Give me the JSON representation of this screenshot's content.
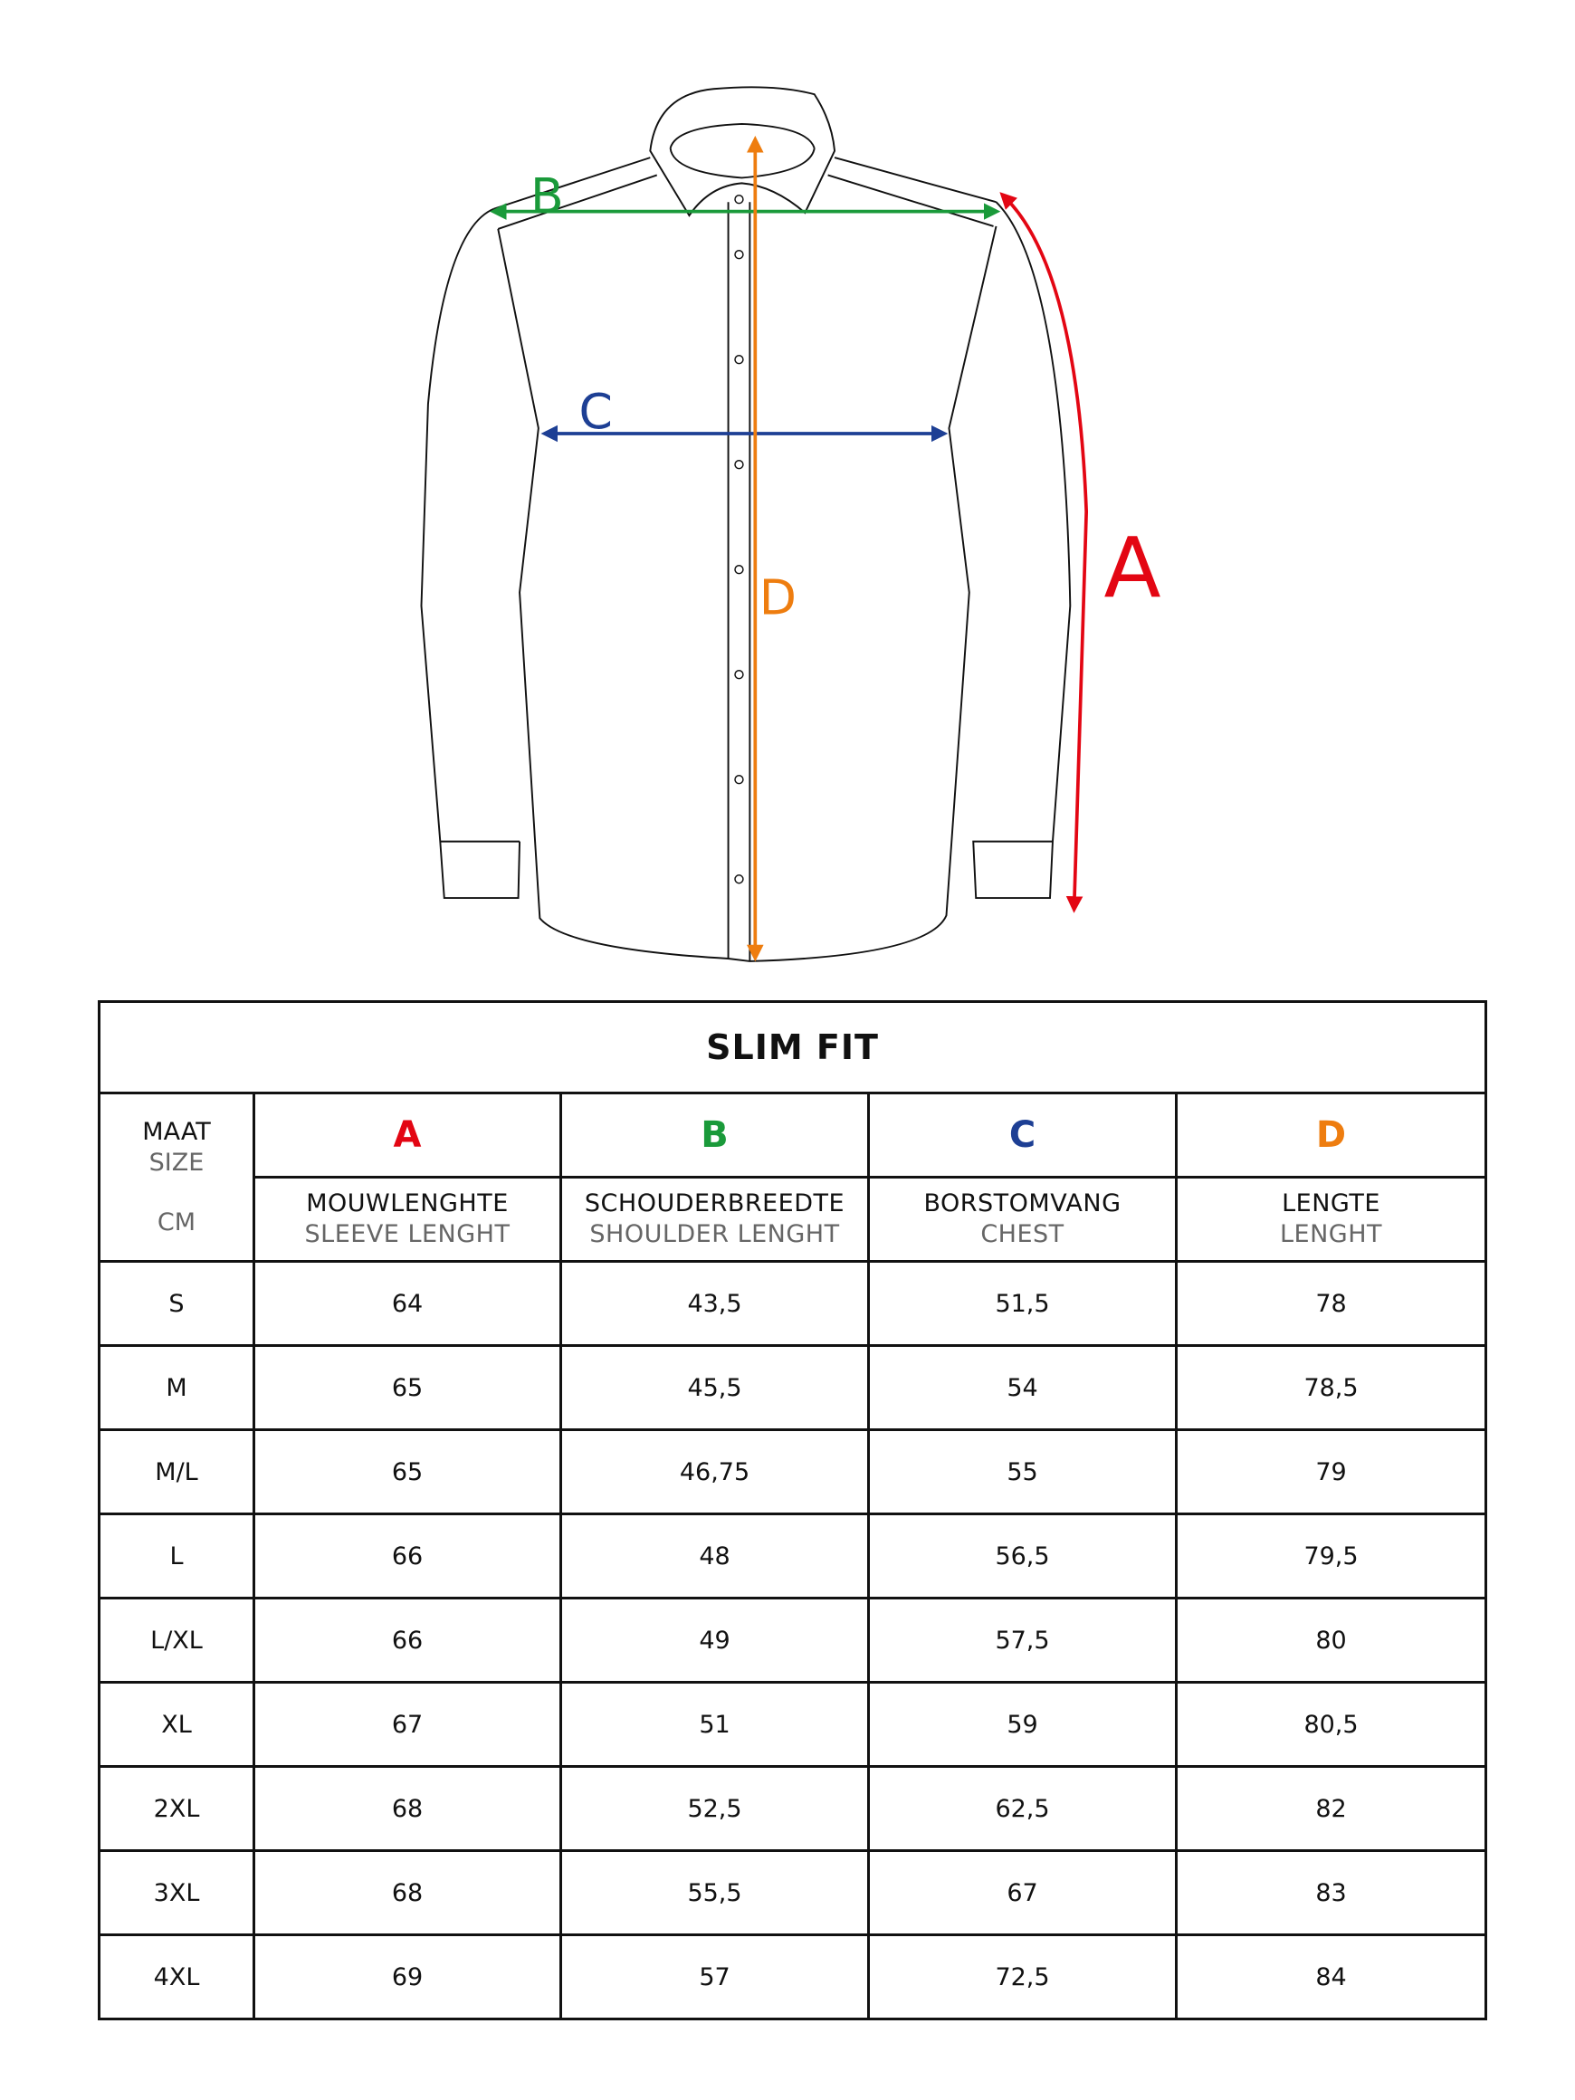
{
  "diagram": {
    "labels": {
      "A": "A",
      "B": "B",
      "C": "C",
      "D": "D"
    },
    "colors": {
      "A": "#e30613",
      "B": "#1a9a3a",
      "C": "#1d3f94",
      "D": "#ee7d0f"
    }
  },
  "table": {
    "title": "SLIM FIT",
    "size_header": {
      "nl": "MAAT",
      "en": "SIZE",
      "unit": "CM"
    },
    "columns": [
      {
        "letter": "A",
        "nl": "MOUWLENGHTE",
        "en": "SLEEVE LENGHT"
      },
      {
        "letter": "B",
        "nl": "SCHOUDERBREEDTE",
        "en": "SHOULDER LENGHT"
      },
      {
        "letter": "C",
        "nl": "BORSTOMVANG",
        "en": "CHEST"
      },
      {
        "letter": "D",
        "nl": "LENGTE",
        "en": "LENGHT"
      }
    ],
    "rows": [
      [
        "S",
        "64",
        "43,5",
        "51,5",
        "78"
      ],
      [
        "M",
        "65",
        "45,5",
        "54",
        "78,5"
      ],
      [
        "M/L",
        "65",
        "46,75",
        "55",
        "79"
      ],
      [
        "L",
        "66",
        "48",
        "56,5",
        "79,5"
      ],
      [
        "L/XL",
        "66",
        "49",
        "57,5",
        "80"
      ],
      [
        "XL",
        "67",
        "51",
        "59",
        "80,5"
      ],
      [
        "2XL",
        "68",
        "52,5",
        "62,5",
        "82"
      ],
      [
        "3XL",
        "68",
        "55,5",
        "67",
        "83"
      ],
      [
        "4XL",
        "69",
        "57",
        "72,5",
        "84"
      ]
    ]
  }
}
